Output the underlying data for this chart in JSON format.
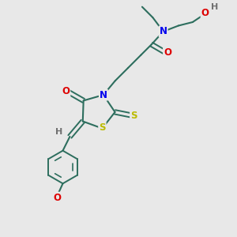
{
  "bg_color": "#e8e8e8",
  "bond_color": "#2d6e5e",
  "atom_colors": {
    "N": "#0000ee",
    "O": "#dd0000",
    "S": "#bbbb00",
    "H": "#707070",
    "C": "#2d6e5e"
  },
  "figsize": [
    3.0,
    3.0
  ],
  "dpi": 100
}
